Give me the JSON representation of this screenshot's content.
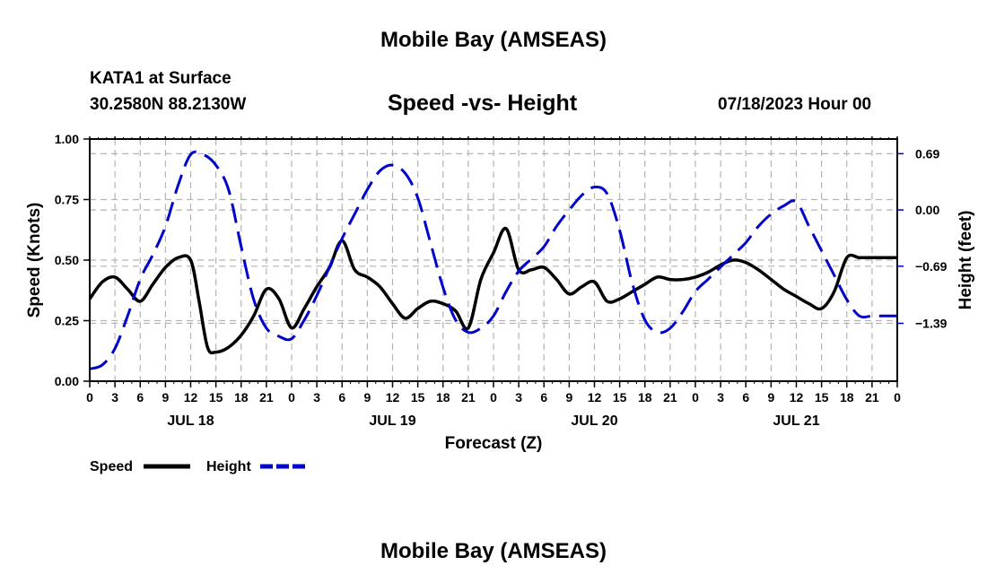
{
  "header": {
    "title": "Mobile Bay (AMSEAS)",
    "station": "KATA1 at Surface",
    "coords": "30.2580N  88.2130W",
    "subtitle": "Speed -vs- Height",
    "datetime": "07/18/2023 Hour 00"
  },
  "footer": {
    "title": "Mobile Bay (AMSEAS)"
  },
  "colors": {
    "speed": "#000000",
    "height": "#0000cc",
    "grid": "#b4b4b4"
  },
  "chart_data": {
    "type": "line",
    "title": "Speed -vs- Height",
    "xlabel": "Forecast (Z)",
    "ylabel_left": "Speed (Knots)",
    "ylabel_right": "Height (feet)",
    "x_unit": "hours from 07/18/2023 00Z",
    "xlim": [
      0,
      96
    ],
    "ylim_left": [
      0,
      1.0
    ],
    "ylim_right": [
      -2.1,
      0.87
    ],
    "grid": true,
    "x_tick_hours": [
      0,
      3,
      6,
      9,
      12,
      15,
      18,
      21,
      24,
      27,
      30,
      33,
      36,
      39,
      42,
      45,
      48,
      51,
      54,
      57,
      60,
      63,
      66,
      69,
      72,
      75,
      78,
      81,
      84,
      87,
      90,
      93,
      96
    ],
    "x_tick_labels": [
      "0",
      "3",
      "6",
      "9",
      "12",
      "15",
      "18",
      "21",
      "0",
      "3",
      "6",
      "9",
      "12",
      "15",
      "18",
      "21",
      "0",
      "3",
      "6",
      "9",
      "12",
      "15",
      "18",
      "21",
      "0",
      "3",
      "6",
      "9",
      "12",
      "15",
      "18",
      "21",
      "0"
    ],
    "date_labels": [
      {
        "hour": 12,
        "label": "JUL 18"
      },
      {
        "hour": 36,
        "label": "JUL 19"
      },
      {
        "hour": 60,
        "label": "JUL 20"
      },
      {
        "hour": 84,
        "label": "JUL 21"
      }
    ],
    "left_ticks": [
      {
        "value": 0.0,
        "label": "0.00"
      },
      {
        "value": 0.25,
        "label": "0.25"
      },
      {
        "value": 0.5,
        "label": "0.50"
      },
      {
        "value": 0.75,
        "label": "0.75"
      },
      {
        "value": 1.0,
        "label": "1.00"
      }
    ],
    "right_ticks": [
      {
        "value": 0.69,
        "label": "0.69"
      },
      {
        "value": 0.0,
        "label": "0.00"
      },
      {
        "value": -0.69,
        "label": "−0.69"
      },
      {
        "value": -1.39,
        "label": "−1.39"
      }
    ],
    "legend": [
      {
        "name": "Speed",
        "style": "solid",
        "color": "#000000"
      },
      {
        "name": "Height",
        "style": "dashed",
        "color": "#0000cc"
      }
    ],
    "legend_position": "bottom-left",
    "series": [
      {
        "name": "Speed",
        "axis": "left",
        "x": [
          0,
          1.5,
          3,
          4.5,
          6,
          7.5,
          9,
          10.5,
          12,
          13,
          14,
          15,
          16.5,
          18,
          19.5,
          21,
          22.5,
          24,
          25.5,
          27,
          28.5,
          30,
          31.5,
          33,
          34.5,
          36,
          37.5,
          39,
          40.5,
          42,
          43.5,
          45,
          46.5,
          48,
          49.5,
          51,
          52.5,
          54,
          55.5,
          57,
          58.5,
          60,
          61.5,
          63,
          64.5,
          66,
          67.5,
          69,
          70.5,
          72,
          73.5,
          75,
          76.5,
          78,
          79.5,
          81,
          82.5,
          84,
          85.5,
          87,
          88.5,
          90,
          91.5,
          93,
          94.5,
          96
        ],
        "values": [
          0.34,
          0.41,
          0.43,
          0.38,
          0.33,
          0.4,
          0.47,
          0.51,
          0.5,
          0.33,
          0.14,
          0.12,
          0.14,
          0.19,
          0.27,
          0.38,
          0.34,
          0.22,
          0.3,
          0.39,
          0.47,
          0.58,
          0.46,
          0.43,
          0.39,
          0.32,
          0.26,
          0.3,
          0.33,
          0.32,
          0.29,
          0.22,
          0.42,
          0.53,
          0.63,
          0.46,
          0.46,
          0.47,
          0.42,
          0.36,
          0.39,
          0.41,
          0.33,
          0.34,
          0.37,
          0.4,
          0.43,
          0.42,
          0.42,
          0.43,
          0.45,
          0.48,
          0.5,
          0.49,
          0.46,
          0.42,
          0.38,
          0.35,
          0.32,
          0.3,
          0.37,
          0.51,
          0.51,
          0.51,
          0.51,
          0.51
        ]
      },
      {
        "name": "Height",
        "axis": "right",
        "x": [
          0,
          1.5,
          3,
          4.5,
          6,
          7.5,
          9,
          10.5,
          12,
          13.5,
          15,
          16.5,
          18,
          19.5,
          21,
          22.5,
          24,
          25.5,
          27,
          28.5,
          30,
          31.5,
          33,
          34.5,
          36,
          37.5,
          39,
          40.5,
          42,
          43.5,
          45,
          46.5,
          48,
          49.5,
          51,
          52.5,
          54,
          55.5,
          57,
          58.5,
          60,
          61.5,
          63,
          64.5,
          66,
          67.5,
          69,
          70.5,
          72,
          73.5,
          75,
          76.5,
          78,
          79.5,
          81,
          82.5,
          84,
          85.5,
          87,
          88.5,
          90,
          91.5,
          93,
          94.5,
          96
        ],
        "values": [
          -1.95,
          -1.9,
          -1.7,
          -1.3,
          -0.85,
          -0.55,
          -0.2,
          0.3,
          0.68,
          0.68,
          0.55,
          0.25,
          -0.45,
          -1.1,
          -1.45,
          -1.55,
          -1.58,
          -1.35,
          -1.05,
          -0.7,
          -0.35,
          -0.05,
          0.25,
          0.48,
          0.55,
          0.45,
          0.15,
          -0.4,
          -0.95,
          -1.35,
          -1.5,
          -1.45,
          -1.3,
          -1.0,
          -0.75,
          -0.6,
          -0.45,
          -0.2,
          0.0,
          0.18,
          0.28,
          0.2,
          -0.25,
          -0.9,
          -1.35,
          -1.5,
          -1.45,
          -1.25,
          -1.0,
          -0.85,
          -0.7,
          -0.55,
          -0.4,
          -0.2,
          -0.05,
          0.05,
          0.1,
          -0.2,
          -0.5,
          -0.8,
          -1.1,
          -1.3,
          -1.3,
          -1.3,
          -1.3
        ]
      }
    ]
  }
}
